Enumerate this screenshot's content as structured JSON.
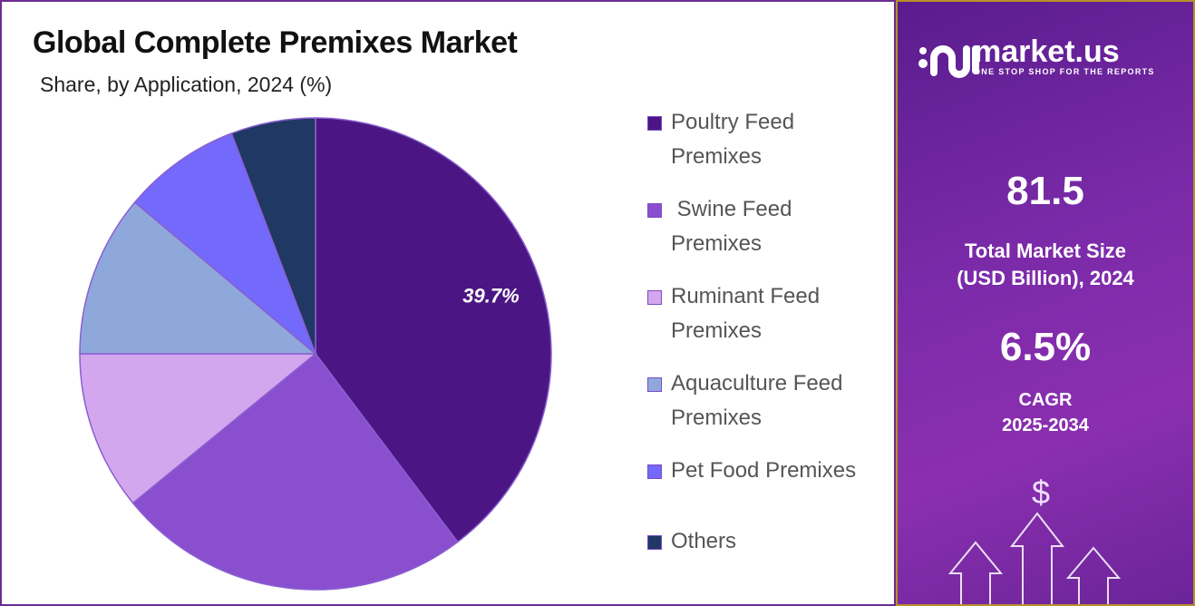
{
  "chart_data": {
    "type": "pie",
    "title": "Global Complete Premixes Market",
    "subtitle": "Share, by Application, 2024 (%)",
    "categories": [
      "Poultry Feed Premixes",
      "Swine Feed Premixes",
      "Ruminant Feed Premixes",
      "Aquaculture Feed Premixes",
      "Pet Food Premixes",
      "Others"
    ],
    "values": [
      39.7,
      24.4,
      10.9,
      11.1,
      8.1,
      5.8
    ],
    "colors": [
      "#4b1683",
      "#8a4fcf",
      "#d3a6ee",
      "#8fa8dc",
      "#7369fa",
      "#1f3864"
    ],
    "data_labels": [
      "39.7%",
      "",
      "",
      "",
      "",
      ""
    ],
    "legend_position": "right",
    "start_angle": "top, clockwise"
  },
  "legend_labels": [
    "Poultry Feed Premixes",
    " Swine Feed Premixes",
    "Ruminant Feed Premixes",
    "Aquaculture Feed Premixes",
    "Pet Food Premixes",
    "Others"
  ],
  "panel": {
    "brand": "market.us",
    "tagline": "ONE STOP SHOP FOR THE REPORTS",
    "market_size": "81.5",
    "market_size_label_1": "Total Market Size",
    "market_size_label_2": "(USD Billion), 2024",
    "cagr": "6.5%",
    "cagr_label_1": "CAGR",
    "cagr_label_2": "2025-2034",
    "dollar": "$"
  }
}
